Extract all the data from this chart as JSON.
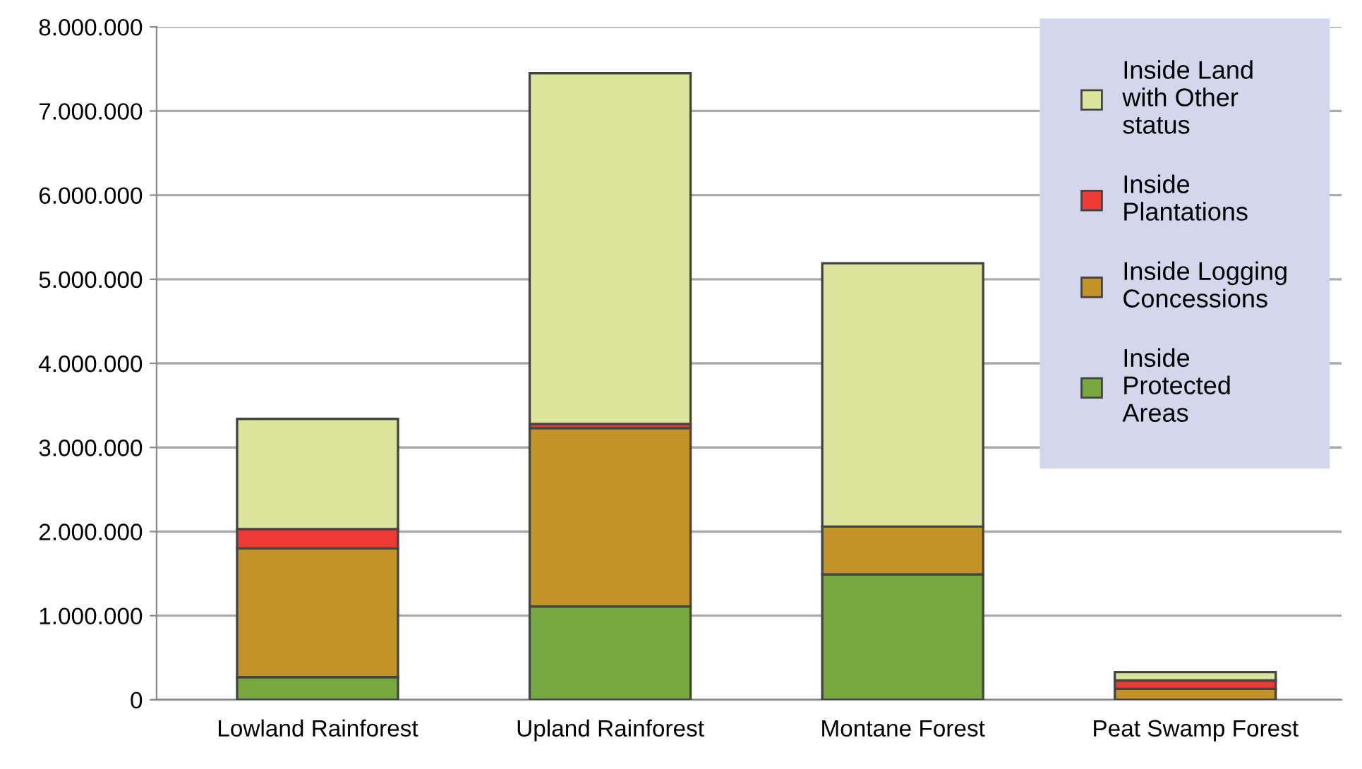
{
  "chart_data": {
    "type": "bar",
    "stacked": true,
    "categories": [
      "Lowland Rainforest",
      "Upland Rainforest",
      "Montane Forest",
      "Peat Swamp Forest"
    ],
    "series": [
      {
        "name": "Inside Protected Areas",
        "color": "#77a83f",
        "values": [
          270000,
          1110000,
          1490000,
          null
        ]
      },
      {
        "name": "Inside Logging Concessions",
        "color": "#c49327",
        "values": [
          1530000,
          2120000,
          570000,
          130000
        ]
      },
      {
        "name": "Inside Plantations",
        "color": "#ee3a33",
        "values": [
          230000,
          50000,
          null,
          100000
        ]
      },
      {
        "name": "Inside Land with Other status",
        "color": "#dbe69c",
        "values": [
          1310000,
          4170000,
          3130000,
          100000
        ]
      }
    ],
    "ylim": [
      0,
      8000000
    ],
    "yticks": [
      {
        "value": 0,
        "label": "0"
      },
      {
        "value": 1000000,
        "label": "1.000.000"
      },
      {
        "value": 2000000,
        "label": "2.000.000"
      },
      {
        "value": 3000000,
        "label": "3.000.000"
      },
      {
        "value": 4000000,
        "label": "4.000.000"
      },
      {
        "value": 5000000,
        "label": "5.000.000"
      },
      {
        "value": 6000000,
        "label": "6.000.000"
      },
      {
        "value": 7000000,
        "label": "7.000.000"
      },
      {
        "value": 8000000,
        "label": "8.000.000"
      }
    ],
    "grid": "y",
    "legend": "top right"
  }
}
